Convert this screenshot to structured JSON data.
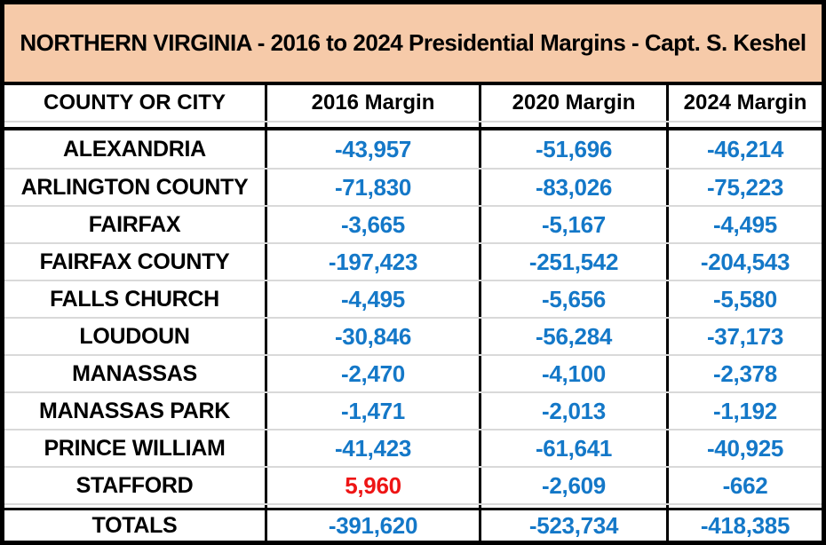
{
  "title": "NORTHERN VIRGINIA -  2016 to 2024 Presidential Margins - Capt. S. Keshel",
  "colors": {
    "title_bg": "#F6CAA9",
    "border": "#000000",
    "row_divider": "#D9D9D9",
    "header_text": "#000000",
    "negative_value": "#1478C8",
    "positive_value": "#EE1515"
  },
  "chart_data": {
    "type": "table",
    "title": "NORTHERN VIRGINIA -  2016 to 2024 Presidential Margins - Capt. S. Keshel",
    "columns": [
      "COUNTY OR CITY",
      "2016 Margin",
      "2020 Margin",
      "2024 Margin"
    ],
    "rows": [
      {
        "name": "ALEXANDRIA",
        "values": [
          "-43,957",
          "-51,696",
          "-46,214"
        ]
      },
      {
        "name": "ARLINGTON COUNTY",
        "values": [
          "-71,830",
          "-83,026",
          "-75,223"
        ]
      },
      {
        "name": "FAIRFAX",
        "values": [
          "-3,665",
          "-5,167",
          "-4,495"
        ]
      },
      {
        "name": "FAIRFAX COUNTY",
        "values": [
          "-197,423",
          "-251,542",
          "-204,543"
        ]
      },
      {
        "name": "FALLS CHURCH",
        "values": [
          "-4,495",
          "-5,656",
          "-5,580"
        ]
      },
      {
        "name": "LOUDOUN",
        "values": [
          "-30,846",
          "-56,284",
          "-37,173"
        ]
      },
      {
        "name": "MANASSAS",
        "values": [
          "-2,470",
          "-4,100",
          "-2,378"
        ]
      },
      {
        "name": "MANASSAS PARK",
        "values": [
          "-1,471",
          "-2,013",
          "-1,192"
        ]
      },
      {
        "name": "PRINCE WILLIAM",
        "values": [
          "-41,423",
          "-61,641",
          "-40,925"
        ]
      },
      {
        "name": "STAFFORD",
        "values": [
          "5,960",
          "-2,609",
          "-662"
        ]
      }
    ],
    "totals": {
      "name": "TOTALS",
      "values": [
        "-391,620",
        "-523,734",
        "-418,385"
      ]
    }
  }
}
